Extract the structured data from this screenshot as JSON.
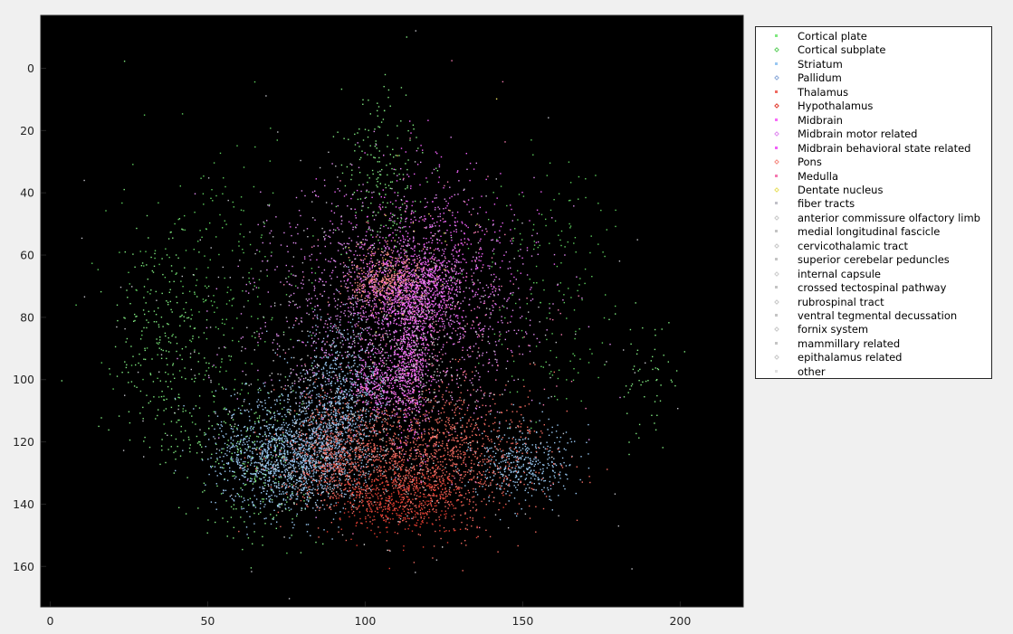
{
  "chart_data": {
    "type": "scatter",
    "title": "",
    "xlabel": "",
    "ylabel": "",
    "xlim": [
      -3,
      220
    ],
    "ylim": [
      -17,
      173
    ],
    "y_reversed": true,
    "background": "#000000",
    "grid": false,
    "legend_placement": "outside-right",
    "x_ticks": [
      0,
      50,
      100,
      150,
      200
    ],
    "y_ticks": [
      0,
      20,
      40,
      60,
      80,
      100,
      120,
      140,
      160
    ],
    "series": [
      {
        "name": "Cortical plate",
        "color": "#7fe87f",
        "marker": "square",
        "clusters": [
          {
            "cx": 36,
            "cy": 90,
            "sx": 8,
            "sy": 22,
            "n": 260
          },
          {
            "cx": 65,
            "cy": 125,
            "sx": 10,
            "sy": 14,
            "n": 260
          },
          {
            "cx": 105,
            "cy": 35,
            "sx": 6,
            "sy": 15,
            "n": 200
          },
          {
            "cx": 190,
            "cy": 100,
            "sx": 6,
            "sy": 10,
            "n": 60
          }
        ]
      },
      {
        "name": "Cortical subplate",
        "color": "#5ecf5e",
        "marker": "diamond",
        "clusters": [
          {
            "cx": 52,
            "cy": 70,
            "sx": 14,
            "sy": 25,
            "n": 220
          },
          {
            "cx": 160,
            "cy": 70,
            "sx": 12,
            "sy": 22,
            "n": 160
          }
        ]
      },
      {
        "name": "Striatum",
        "color": "#99c8f2",
        "marker": "square",
        "clusters": [
          {
            "cx": 75,
            "cy": 125,
            "sx": 11,
            "sy": 9,
            "n": 1300
          },
          {
            "cx": 93,
            "cy": 105,
            "sx": 8,
            "sy": 12,
            "n": 700
          },
          {
            "cx": 150,
            "cy": 127,
            "sx": 8,
            "sy": 6,
            "n": 400
          }
        ]
      },
      {
        "name": "Pallidum",
        "color": "#8aa8d8",
        "marker": "diamond",
        "clusters": [
          {
            "cx": 88,
            "cy": 120,
            "sx": 6,
            "sy": 8,
            "n": 300
          }
        ]
      },
      {
        "name": "Thalamus",
        "color": "#f06a60",
        "marker": "square",
        "clusters": [
          {
            "cx": 118,
            "cy": 125,
            "sx": 18,
            "sy": 11,
            "n": 1500
          },
          {
            "cx": 90,
            "cy": 125,
            "sx": 8,
            "sy": 8,
            "n": 400
          }
        ]
      },
      {
        "name": "Hypothalamus",
        "color": "#e23c30",
        "marker": "diamond",
        "clusters": [
          {
            "cx": 112,
            "cy": 138,
            "sx": 10,
            "sy": 6,
            "n": 500
          }
        ]
      },
      {
        "name": "Midbrain",
        "color": "#f86af8",
        "marker": "square",
        "clusters": [
          {
            "cx": 115,
            "cy": 72,
            "sx": 8,
            "sy": 6,
            "n": 700
          },
          {
            "cx": 115,
            "cy": 95,
            "sx": 3,
            "sy": 12,
            "n": 500
          },
          {
            "cx": 105,
            "cy": 100,
            "sx": 5,
            "sy": 5,
            "n": 250
          }
        ]
      },
      {
        "name": "Midbrain motor related",
        "color": "#e08af0",
        "marker": "diamond",
        "clusters": [
          {
            "cx": 110,
            "cy": 75,
            "sx": 22,
            "sy": 18,
            "n": 1300
          }
        ]
      },
      {
        "name": "Midbrain behavioral state related",
        "color": "#f060f8",
        "marker": "square",
        "clusters": [
          {
            "cx": 120,
            "cy": 60,
            "sx": 14,
            "sy": 14,
            "n": 500
          }
        ]
      },
      {
        "name": "Pons",
        "color": "#f58a80",
        "marker": "diamond",
        "clusters": [
          {
            "cx": 107,
            "cy": 68,
            "sx": 6,
            "sy": 5,
            "n": 350
          }
        ]
      },
      {
        "name": "Medulla",
        "color": "#f57ab0",
        "marker": "square",
        "clusters": [
          {
            "cx": 120,
            "cy": 85,
            "sx": 18,
            "sy": 22,
            "n": 350
          }
        ]
      },
      {
        "name": "Dentate nucleus",
        "color": "#e8e060",
        "marker": "diamond",
        "clusters": [
          {
            "cx": 118,
            "cy": 55,
            "sx": 15,
            "sy": 15,
            "n": 20
          }
        ]
      },
      {
        "name": "fiber tracts",
        "color": "#c0c0c8",
        "marker": "square",
        "clusters": [
          {
            "cx": 100,
            "cy": 90,
            "sx": 35,
            "sy": 30,
            "n": 350
          }
        ]
      },
      {
        "name": "anterior commissure olfactory limb",
        "color": "#c8c8c8",
        "marker": "diamond",
        "clusters": [
          {
            "cx": 85,
            "cy": 130,
            "sx": 8,
            "sy": 5,
            "n": 40
          }
        ]
      },
      {
        "name": "medial longitudinal fascicle",
        "color": "#c4c4c4",
        "marker": "square",
        "clusters": [
          {
            "cx": 115,
            "cy": 90,
            "sx": 4,
            "sy": 12,
            "n": 40
          }
        ]
      },
      {
        "name": "cervicothalamic tract",
        "color": "#c8c8c8",
        "marker": "diamond",
        "clusters": [
          {
            "cx": 120,
            "cy": 115,
            "sx": 10,
            "sy": 10,
            "n": 20
          }
        ]
      },
      {
        "name": "superior cerebelar peduncles",
        "color": "#c4c4c4",
        "marker": "square",
        "clusters": [
          {
            "cx": 118,
            "cy": 80,
            "sx": 10,
            "sy": 12,
            "n": 40
          }
        ]
      },
      {
        "name": "internal capsule",
        "color": "#cccccc",
        "marker": "diamond",
        "clusters": [
          {
            "cx": 82,
            "cy": 112,
            "sx": 10,
            "sy": 14,
            "n": 120
          }
        ]
      },
      {
        "name": "crossed tectospinal pathway",
        "color": "#c4c4c4",
        "marker": "square",
        "clusters": [
          {
            "cx": 115,
            "cy": 75,
            "sx": 8,
            "sy": 10,
            "n": 20
          }
        ]
      },
      {
        "name": "rubrospinal tract",
        "color": "#c8c8c8",
        "marker": "diamond",
        "clusters": [
          {
            "cx": 112,
            "cy": 85,
            "sx": 8,
            "sy": 10,
            "n": 20
          }
        ]
      },
      {
        "name": "ventral tegmental decussation",
        "color": "#c4c4c4",
        "marker": "square",
        "clusters": [
          {
            "cx": 115,
            "cy": 95,
            "sx": 4,
            "sy": 6,
            "n": 20
          }
        ]
      },
      {
        "name": "fornix system",
        "color": "#c8c8c8",
        "marker": "diamond",
        "clusters": [
          {
            "cx": 105,
            "cy": 110,
            "sx": 10,
            "sy": 10,
            "n": 60
          }
        ]
      },
      {
        "name": "mammillary related",
        "color": "#c4c4c4",
        "marker": "square",
        "clusters": [
          {
            "cx": 113,
            "cy": 132,
            "sx": 6,
            "sy": 5,
            "n": 20
          }
        ]
      },
      {
        "name": "epithalamus related",
        "color": "#c8c8c8",
        "marker": "diamond",
        "clusters": [
          {
            "cx": 112,
            "cy": 100,
            "sx": 6,
            "sy": 6,
            "n": 20
          }
        ]
      },
      {
        "name": "other",
        "color": "#e0e0e0",
        "marker": "square",
        "clusters": [
          {
            "cx": 110,
            "cy": 110,
            "sx": 30,
            "sy": 20,
            "n": 40
          }
        ]
      }
    ]
  }
}
